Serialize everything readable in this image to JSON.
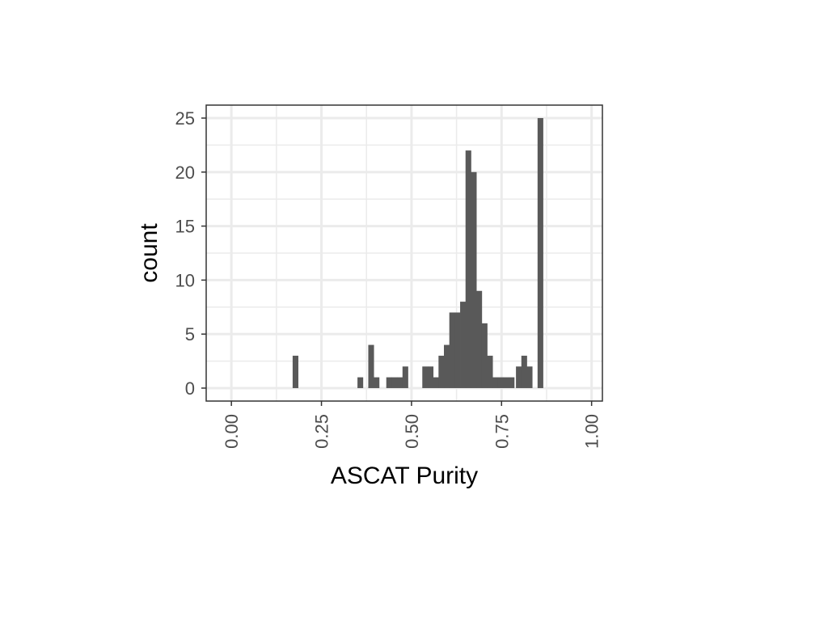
{
  "chart_data": {
    "type": "bar",
    "subtype": "histogram",
    "title": "",
    "xlabel": "ASCAT Purity",
    "ylabel": "count",
    "xlim": [
      -0.07,
      1.03
    ],
    "ylim": [
      -1.2,
      26.2
    ],
    "xticks": [
      0.0,
      0.25,
      0.5,
      0.75,
      1.0
    ],
    "xtick_labels": [
      "0.00",
      "0.25",
      "0.50",
      "0.75",
      "1.00"
    ],
    "yticks": [
      0,
      5,
      10,
      15,
      20,
      25
    ],
    "ytick_labels": [
      "0",
      "5",
      "10",
      "15",
      "20",
      "25"
    ],
    "x_minor_gridlines": [
      0.125,
      0.375,
      0.625,
      0.875
    ],
    "y_minor_gridlines": [
      2.5,
      7.5,
      12.5,
      17.5,
      22.5
    ],
    "grid": true,
    "bin_width": 0.015,
    "bins": [
      {
        "x0": 0.17,
        "count": 3
      },
      {
        "x0": 0.35,
        "count": 1
      },
      {
        "x0": 0.38,
        "count": 4
      },
      {
        "x0": 0.395,
        "count": 1
      },
      {
        "x0": 0.43,
        "count": 1
      },
      {
        "x0": 0.445,
        "count": 1
      },
      {
        "x0": 0.46,
        "count": 1
      },
      {
        "x0": 0.475,
        "count": 2
      },
      {
        "x0": 0.53,
        "count": 2
      },
      {
        "x0": 0.545,
        "count": 2
      },
      {
        "x0": 0.56,
        "count": 1
      },
      {
        "x0": 0.575,
        "count": 3
      },
      {
        "x0": 0.59,
        "count": 4
      },
      {
        "x0": 0.605,
        "count": 7
      },
      {
        "x0": 0.62,
        "count": 7
      },
      {
        "x0": 0.635,
        "count": 8
      },
      {
        "x0": 0.65,
        "count": 22
      },
      {
        "x0": 0.665,
        "count": 20
      },
      {
        "x0": 0.68,
        "count": 9
      },
      {
        "x0": 0.695,
        "count": 6
      },
      {
        "x0": 0.71,
        "count": 3
      },
      {
        "x0": 0.725,
        "count": 1
      },
      {
        "x0": 0.74,
        "count": 1
      },
      {
        "x0": 0.755,
        "count": 1
      },
      {
        "x0": 0.77,
        "count": 1
      },
      {
        "x0": 0.79,
        "count": 2
      },
      {
        "x0": 0.805,
        "count": 3
      },
      {
        "x0": 0.82,
        "count": 2
      },
      {
        "x0": 0.85,
        "count": 25
      }
    ],
    "colors": {
      "bar": "#595959",
      "grid": "#ebebeb",
      "panel_border": "#333333",
      "tick_text": "#4d4d4d",
      "axis_title": "#000000"
    }
  }
}
